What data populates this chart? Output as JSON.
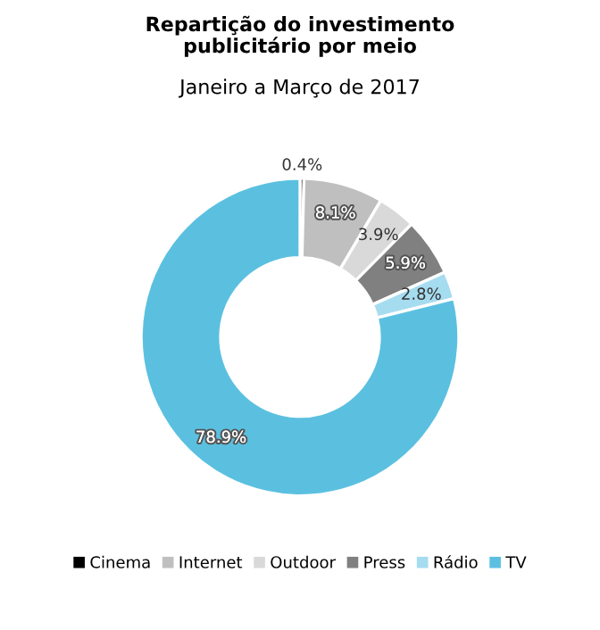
{
  "chart_data": {
    "type": "donut",
    "title": "Repartição do investimento\npublicitário por meio",
    "subtitle": "Janeiro a Março de 2017",
    "categories": [
      "Cinema",
      "Internet",
      "Outdoor",
      "Press",
      "Rádio",
      "TV"
    ],
    "values": [
      0.4,
      8.1,
      3.9,
      5.9,
      2.8,
      78.9
    ],
    "colors": [
      "#000000",
      "#bfbfbf",
      "#d9d9d9",
      "#808080",
      "#a6dcef",
      "#5bc0e0"
    ],
    "value_labels": [
      "0.4%",
      "8.1%",
      "3.9%",
      "5.9%",
      "2.8%",
      "78.9%"
    ],
    "legend": "bottom"
  }
}
